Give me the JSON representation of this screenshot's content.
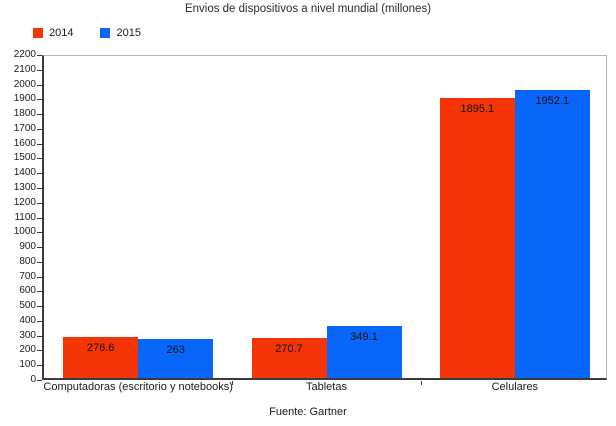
{
  "title": "Envios de dispositivos a nivel mundial (millones)",
  "footer": "Fuente: Gartner",
  "chart_data": {
    "type": "bar",
    "title": "Envios de dispositivos a nivel mundial (millones)",
    "categories": [
      "Computadoras (escritorio y notebooks)",
      "Tabletas",
      "Celulares"
    ],
    "series": [
      {
        "name": "2014",
        "color": "#f53505",
        "values": [
          276.6,
          270.7,
          1895.1
        ]
      },
      {
        "name": "2015",
        "color": "#0866fa",
        "values": [
          263,
          349.1,
          1952.1
        ]
      }
    ],
    "ylim": [
      0,
      2200
    ],
    "ytick_step": 100,
    "grid": false,
    "legend_position": "top-left",
    "source_note": "Fuente: Gartner"
  }
}
